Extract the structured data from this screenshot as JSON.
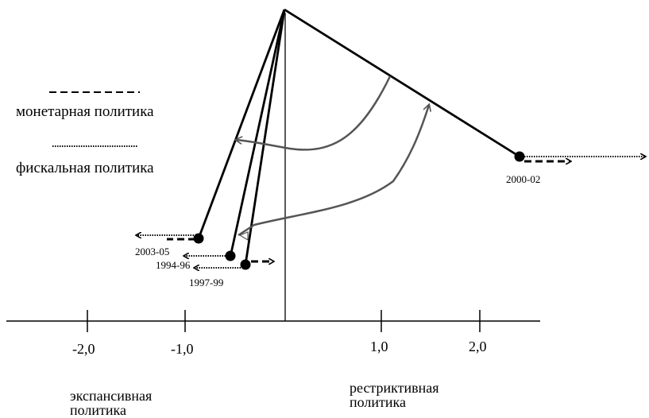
{
  "legend": {
    "monetary": "монетарная политика",
    "fiscal": "фискальная политика"
  },
  "axis": {
    "ticks": [
      "-2,0",
      "-1,0",
      "1,0",
      "2,0"
    ],
    "left_caption": [
      "экспансивная",
      "политика"
    ],
    "right_caption": [
      "рестриктивная",
      "политика"
    ]
  },
  "periods": [
    "2003-05",
    "1994-96",
    "1997-99",
    "2000-02"
  ],
  "colors": {
    "line": "#000000",
    "arc": "#555555"
  }
}
